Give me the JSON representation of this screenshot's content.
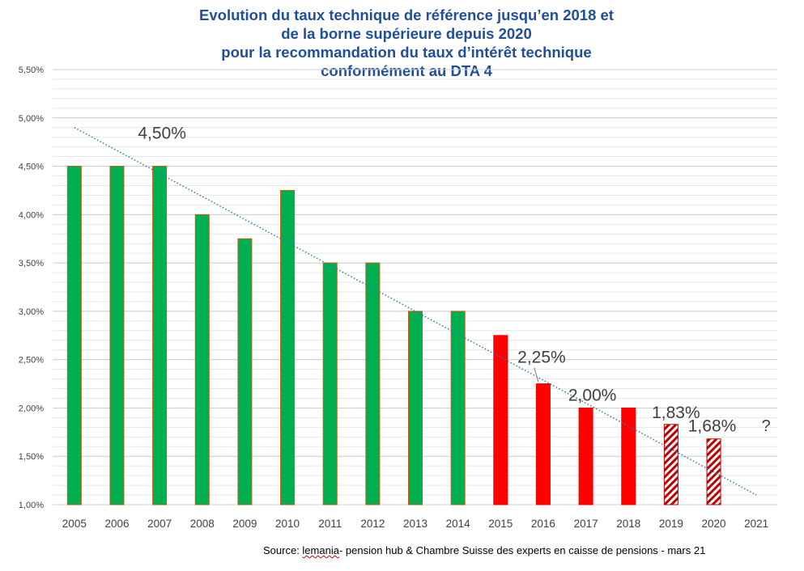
{
  "chart_data": {
    "type": "bar",
    "title_lines": [
      "Evolution du taux technique de référence jusqu’en 2018 et",
      "de la borne supérieure depuis 2020",
      "pour la recommandation du taux d’intérêt technique",
      "conformément au DTA 4"
    ],
    "categories": [
      "2005",
      "2006",
      "2007",
      "2008",
      "2009",
      "2010",
      "2011",
      "2012",
      "2013",
      "2014",
      "2015",
      "2016",
      "2017",
      "2018",
      "2019",
      "2020",
      "2021"
    ],
    "values": [
      4.5,
      4.5,
      4.5,
      4.0,
      3.75,
      4.25,
      3.5,
      3.5,
      3.0,
      3.0,
      2.75,
      2.25,
      2.0,
      2.0,
      1.83,
      1.68,
      null
    ],
    "bar_styles": [
      "solid-green",
      "solid-green",
      "solid-green",
      "solid-green",
      "solid-green",
      "solid-green",
      "solid-green",
      "solid-green",
      "solid-green",
      "solid-green",
      "solid-red",
      "solid-red",
      "solid-red",
      "solid-red",
      "hatched-red",
      "hatched-red",
      "none"
    ],
    "ylim": [
      1.0,
      5.5
    ],
    "y_ticks": [
      1.0,
      1.5,
      2.0,
      2.5,
      3.0,
      3.5,
      4.0,
      4.5,
      5.0,
      5.5
    ],
    "y_tick_labels": [
      "1,00%",
      "1,50%",
      "2,00%",
      "2,50%",
      "3,00%",
      "3,50%",
      "4,00%",
      "4,50%",
      "5,00%",
      "5,50%"
    ],
    "minor_grid_step": 0.1,
    "trendline": {
      "from": {
        "category": "2005",
        "value": 4.9
      },
      "to": {
        "category": "2021",
        "value": 1.1
      }
    },
    "annotations": [
      {
        "category": "2007",
        "text": "4,50%"
      },
      {
        "category": "2016",
        "text": "2,25%"
      },
      {
        "category": "2017",
        "text": "2,00%"
      },
      {
        "category": "2019",
        "text": "1,83%"
      },
      {
        "category": "2020",
        "text": "1,68%"
      },
      {
        "category": "2021",
        "text": "?"
      }
    ],
    "colors": {
      "green": "#00b050",
      "red": "#ff0000",
      "hatch_red": "#c00000",
      "bar_border": "#c55a11",
      "trend": "#2e75b6",
      "title": "#1f4e9c",
      "axis_text": "#404040",
      "annotation_text": "#404040"
    }
  },
  "source": {
    "prefix": "Source: ",
    "underlined": "lemania",
    "rest": "- pension hub & Chambre Suisse des experts en caisse de pensions - mars 21"
  }
}
